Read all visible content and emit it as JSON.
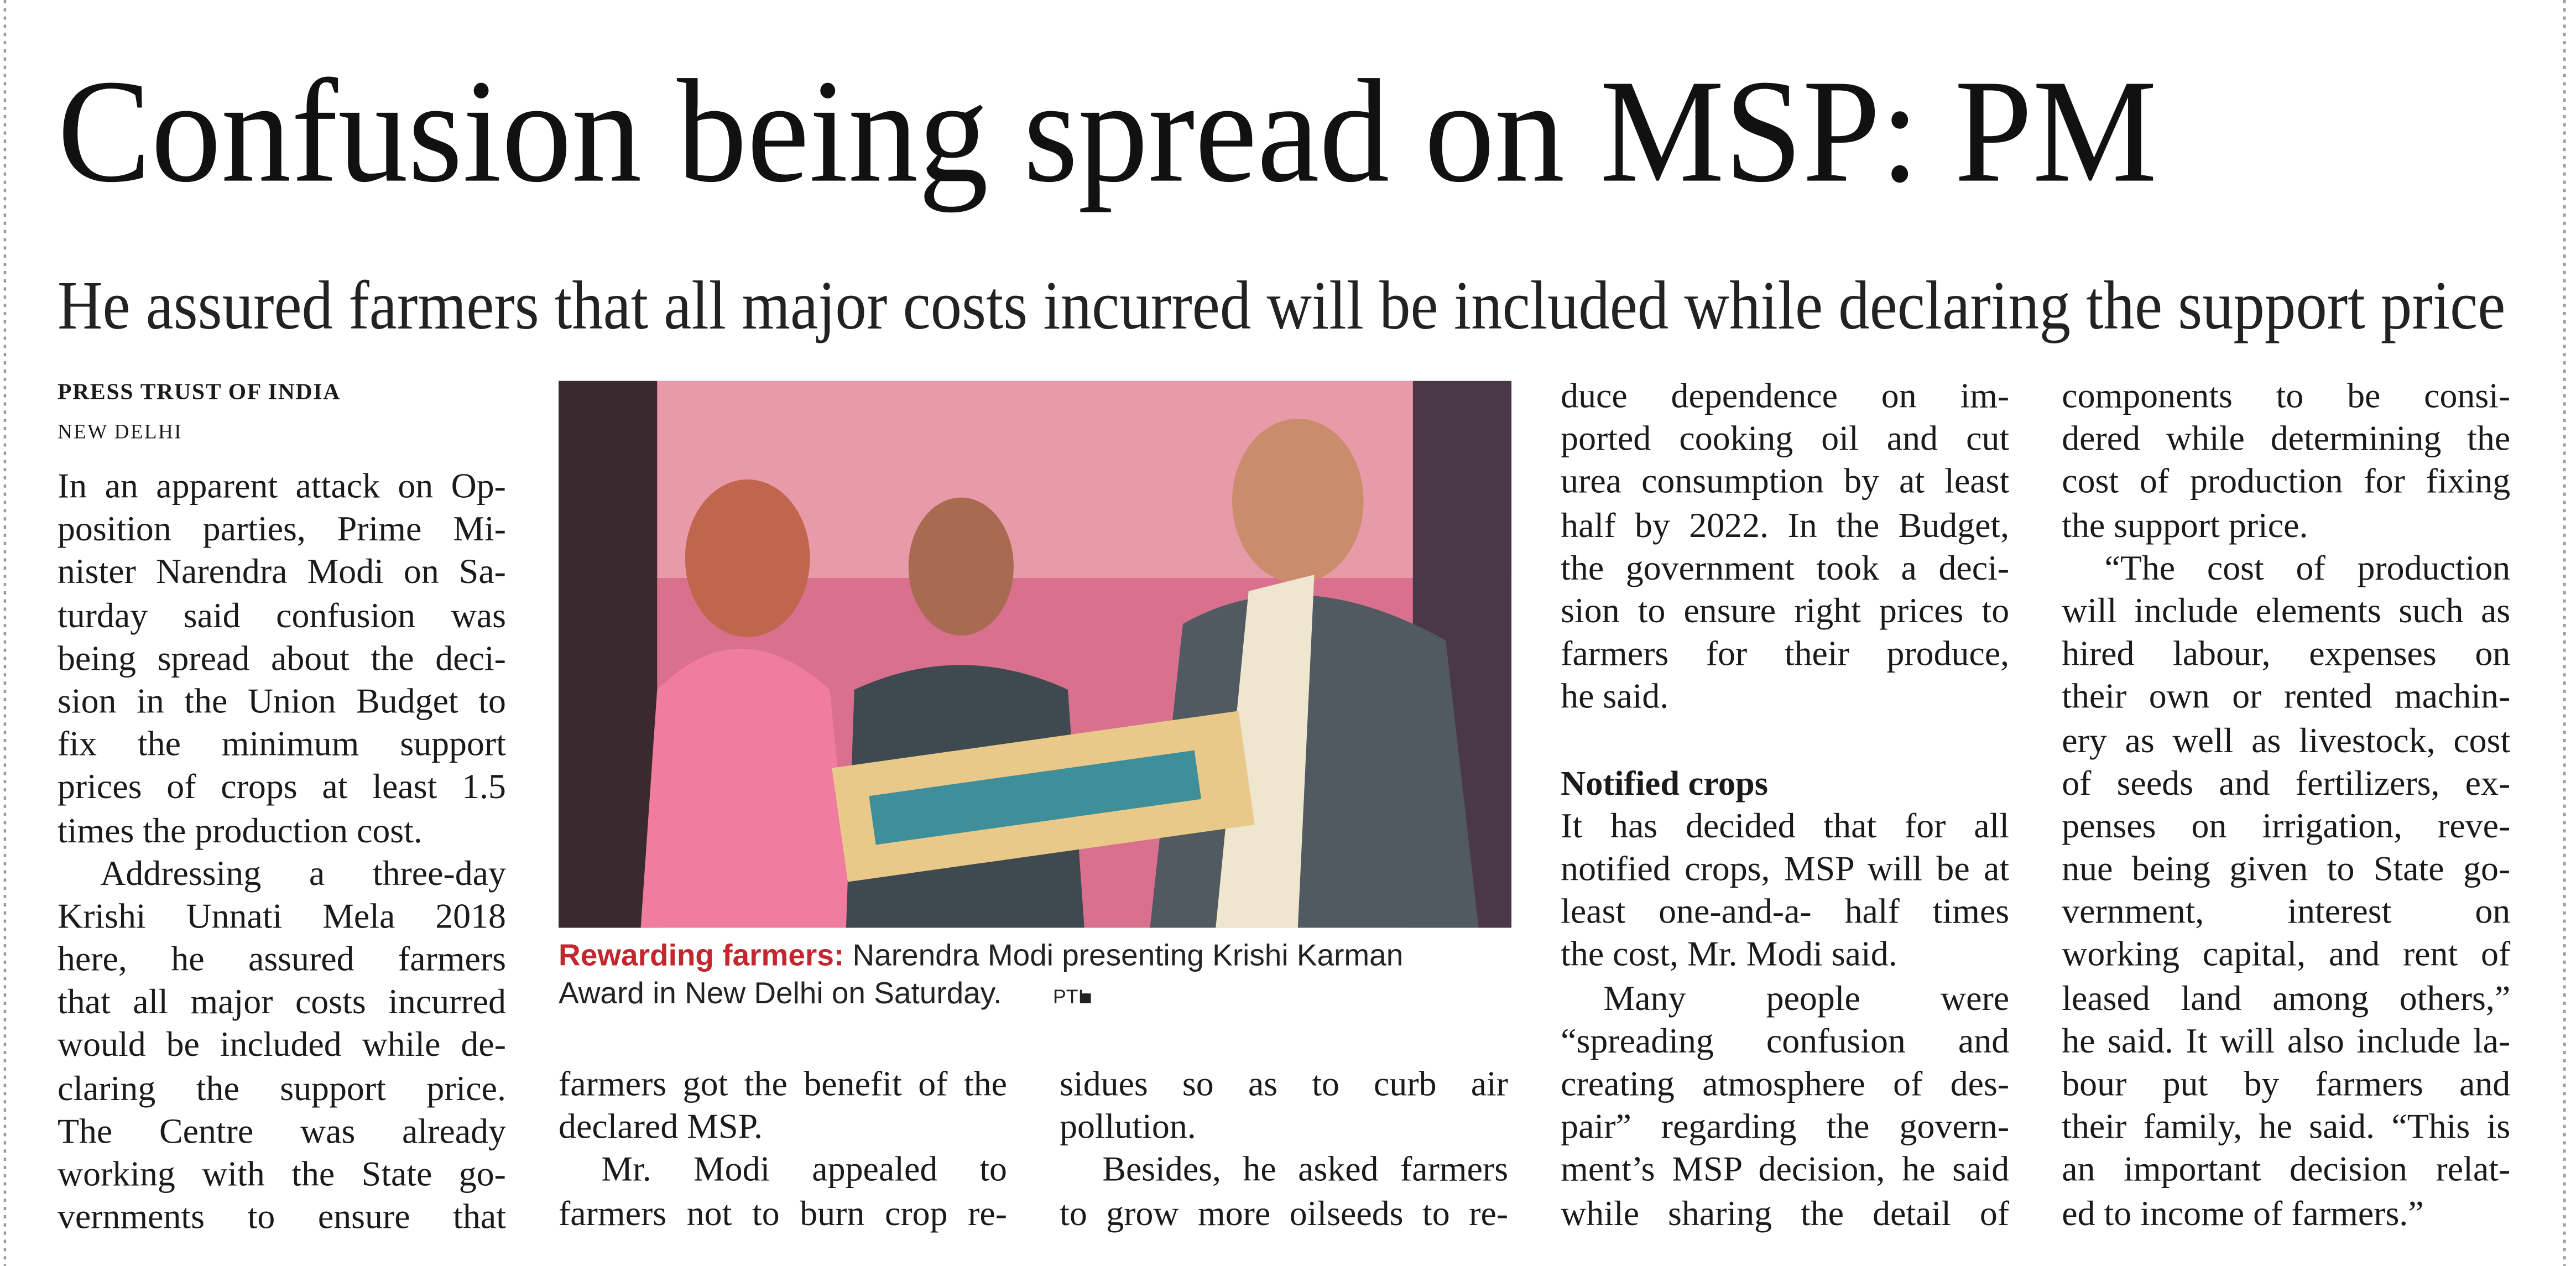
{
  "headline": "Confusion being spread on MSP: PM",
  "subheadline": "He assured farmers that all major costs incurred will be included while declaring the support price",
  "byline": "PRESS TRUST OF INDIA",
  "dateline": "NEW DELHI",
  "photo": {
    "caption_label": "Rewarding farmers:",
    "caption_lines": [
      "Narendra Modi presenting Krishi Karman",
      "Award in New Delhi on Saturday."
    ],
    "credit": "PTI"
  },
  "columns": [
    {
      "blocks": [
        {
          "lines": [
            "In an apparent attack on Op-",
            "position parties, Prime Mi-",
            "nister Narendra Modi on Sa-",
            "turday said confusion was",
            "being spread about the deci-",
            "sion in the Union Budget to",
            "fix the minimum support",
            "prices of crops at least 1.5",
            "times the production cost."
          ]
        },
        {
          "lines": [
            "Addressing a three-day",
            "Krishi Unnati Mela 2018",
            "here, he assured farmers",
            "that all major costs incurred",
            "would be included while de-",
            "claring the support price.",
            "The Centre was already",
            "working with the State go-",
            "vernments to ensure that"
          ]
        }
      ]
    },
    {
      "blocks": [
        {
          "lines": [
            "farmers got the benefit of the",
            "declared MSP."
          ]
        },
        {
          "lines": [
            "Mr. Modi appealed to",
            "farmers not to burn crop re-"
          ]
        }
      ]
    },
    {
      "blocks": [
        {
          "lines": [
            "sidues so as to curb air",
            "pollution."
          ]
        },
        {
          "lines": [
            "Besides, he asked farmers",
            "to grow more oilseeds to re-"
          ]
        }
      ]
    },
    {
      "blocks": [
        {
          "lines": [
            "duce dependence on im-",
            "ported cooking oil and cut",
            "urea consumption by at least",
            "half by 2022. In the Budget,",
            "the government took a deci-",
            "sion to ensure right prices to",
            "farmers for their produce,",
            "he said."
          ]
        },
        {
          "heading": "Notified crops"
        },
        {
          "lines": [
            "It has decided that for all",
            "notified crops, MSP will be at",
            "least one-and-a- half times",
            "the cost, Mr. Modi said."
          ]
        },
        {
          "lines": [
            "Many people were",
            "“spreading confusion and",
            "creating atmosphere of des-",
            "pair” regarding the govern-",
            "ment’s MSP decision, he said",
            "while sharing the detail of"
          ]
        }
      ]
    },
    {
      "blocks": [
        {
          "lines": [
            "components to be consi-",
            "dered while determining the",
            "cost of production for fixing",
            "the support price."
          ]
        },
        {
          "lines": [
            "“The cost of production",
            "will include elements such as",
            "hired labour, expenses on",
            "their own or rented machin-",
            "ery as well as livestock, cost",
            "of seeds and fertilizers, ex-",
            "penses on irrigation, reve-",
            "nue being given to State go-",
            "vernment, interest on",
            "working capital, and rent of",
            "leased land among others,”",
            "he said. It will also include la-",
            "bour put by farmers and",
            "their family, he said. “This is",
            "an important decision relat-",
            "ed to income of farmers.”"
          ]
        }
      ]
    }
  ]
}
